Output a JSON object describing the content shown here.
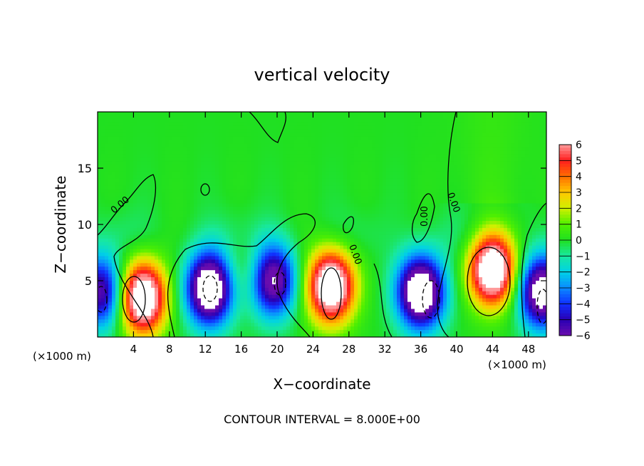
{
  "chart_data": {
    "type": "heatmap",
    "title": "vertical velocity",
    "xlabel": "X−coordinate",
    "ylabel": "Z−coordinate",
    "x_unit_left": "(×1000 m)",
    "x_unit_right": "(×1000 m)",
    "footer": "CONTOUR INTERVAL = 8.000E+00",
    "xlim": [
      0,
      50
    ],
    "ylim": [
      0,
      20
    ],
    "xticks": [
      4,
      8,
      12,
      16,
      20,
      24,
      28,
      32,
      36,
      40,
      44,
      48
    ],
    "xtick_labels": [
      "4",
      "8",
      "12",
      "16",
      "20",
      "24",
      "28",
      "32",
      "36",
      "40",
      "44",
      "48"
    ],
    "yticks": [
      5,
      10,
      15
    ],
    "ytick_labels": [
      "5",
      "10",
      "15"
    ],
    "contour_labels": [
      "0.00",
      "0.00",
      "0.00",
      "0.00"
    ],
    "colorbar": {
      "min": -6,
      "max": 6,
      "tick_labels": [
        "6",
        "5",
        "4",
        "3",
        "2",
        "1",
        "0",
        "−1",
        "−2",
        "−3",
        "−4",
        "−5",
        "−6"
      ]
    },
    "features": [
      {
        "kind": "updraft",
        "x": 5,
        "z": 3.5,
        "amp": 9
      },
      {
        "kind": "downdraft",
        "x": 12.5,
        "z": 4.3,
        "amp": -9
      },
      {
        "kind": "updraft",
        "x": 16.5,
        "z": 5.5,
        "amp": 1.5
      },
      {
        "kind": "downdraft",
        "x": 19.5,
        "z": 5.0,
        "amp": -7
      },
      {
        "kind": "updraft",
        "x": 26,
        "z": 4.5,
        "amp": 9
      },
      {
        "kind": "downdraft",
        "x": 36,
        "z": 4.0,
        "amp": -9
      },
      {
        "kind": "updraft",
        "x": 44,
        "z": 6.0,
        "amp": 9
      },
      {
        "kind": "downdraft",
        "x": 49.5,
        "z": 4.0,
        "amp": -8
      },
      {
        "kind": "downdraft",
        "x": 0.5,
        "z": 4.0,
        "amp": -6
      }
    ]
  }
}
